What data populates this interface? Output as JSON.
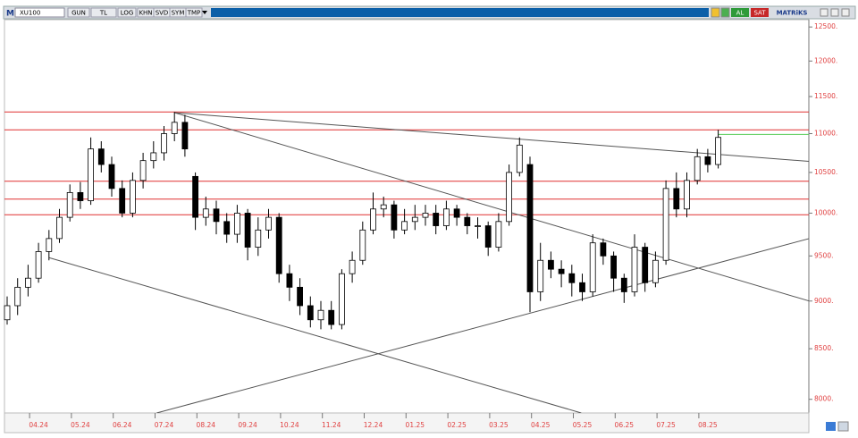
{
  "toolbar": {
    "menu": "M",
    "symbol": "XU100",
    "buttons": [
      "GUN",
      "TL",
      "LOG",
      "KHN",
      "SVD",
      "SYM",
      "TMP"
    ],
    "buy": "AL",
    "sell": "SAT",
    "brand": "MATRiKS"
  },
  "chart_data": {
    "type": "candlestick",
    "log": true,
    "up_color": "#ffffff",
    "down_color": "#000000",
    "categories": [
      null,
      null,
      null,
      "04.24",
      null,
      null,
      null,
      "05.24",
      null,
      null,
      null,
      "06.24",
      null,
      null,
      null,
      "07.24",
      null,
      null,
      null,
      "08.24",
      null,
      null,
      null,
      "09.24",
      null,
      null,
      null,
      "10.24",
      null,
      null,
      null,
      "11.24",
      null,
      null,
      null,
      "12.24",
      null,
      null,
      null,
      "01.25",
      null,
      null,
      null,
      "02.25",
      null,
      null,
      null,
      "03.25",
      null,
      null,
      null,
      "04.25",
      null,
      null,
      null,
      "05.25",
      null,
      null,
      null,
      "06.25",
      null,
      null,
      null,
      "07.25",
      null,
      null,
      null,
      "08.25",
      null
    ],
    "open": [
      8800,
      8950,
      9150,
      9250,
      9550,
      9700,
      9950,
      10250,
      10150,
      10800,
      10600,
      10300,
      10000,
      10400,
      10650,
      10750,
      11000,
      11150,
      10450,
      9950,
      10050,
      9900,
      9750,
      10000,
      9600,
      9800,
      9950,
      9300,
      9150,
      8950,
      8800,
      8900,
      8750,
      9300,
      9450,
      9800,
      10050,
      10100,
      9800,
      9900,
      9950,
      10000,
      9850,
      10050,
      9950,
      9850,
      9850,
      9600,
      9900,
      10500,
      10600,
      9100,
      9450,
      9350,
      9300,
      9200,
      9100,
      9650,
      9500,
      9250,
      9100,
      9600,
      9200,
      9450,
      10300,
      10050,
      10400,
      10700,
      10600
    ],
    "high": [
      9050,
      9250,
      9400,
      9650,
      9800,
      10050,
      10350,
      10380,
      10950,
      10900,
      10700,
      10400,
      10500,
      10750,
      10900,
      11100,
      11290,
      11250,
      10500,
      10200,
      10150,
      10000,
      10100,
      10050,
      9950,
      10050,
      10000,
      9400,
      9250,
      9050,
      9000,
      9000,
      9350,
      9550,
      9900,
      10250,
      10200,
      10150,
      10050,
      10100,
      10100,
      10100,
      10150,
      10100,
      10000,
      9950,
      9900,
      10000,
      10600,
      10950,
      10700,
      9650,
      9550,
      9450,
      9400,
      9300,
      9750,
      9700,
      9550,
      9300,
      9750,
      9650,
      9550,
      10400,
      10500,
      10500,
      10800,
      10800,
      11050
    ],
    "low": [
      8750,
      8850,
      9050,
      9200,
      9450,
      9650,
      9900,
      10050,
      10100,
      10500,
      10200,
      9950,
      9950,
      10300,
      10550,
      10650,
      10900,
      10700,
      9800,
      9850,
      9750,
      9650,
      9650,
      9450,
      9500,
      9700,
      9200,
      9000,
      8850,
      8720,
      8700,
      8700,
      8700,
      9200,
      9400,
      9750,
      9950,
      9700,
      9750,
      9800,
      9850,
      9750,
      9800,
      9850,
      9750,
      9700,
      9500,
      9550,
      9850,
      10450,
      8880,
      9000,
      9250,
      9150,
      9050,
      9000,
      9050,
      9400,
      9100,
      8980,
      9050,
      9100,
      9150,
      9400,
      9950,
      9950,
      10350,
      10500,
      10550
    ],
    "close": [
      8950,
      9150,
      9250,
      9550,
      9700,
      9950,
      10250,
      10150,
      10800,
      10600,
      10300,
      10000,
      10400,
      10650,
      10750,
      11000,
      11150,
      10800,
      9950,
      10050,
      9900,
      9750,
      10000,
      9600,
      9800,
      9950,
      9300,
      9150,
      8950,
      8800,
      8900,
      8750,
      9300,
      9450,
      9800,
      10050,
      10100,
      9800,
      9900,
      9950,
      10000,
      9850,
      10050,
      9950,
      9850,
      9850,
      9600,
      9900,
      10500,
      10850,
      9100,
      9450,
      9350,
      9300,
      9200,
      9100,
      9650,
      9500,
      9250,
      9100,
      9600,
      9200,
      9450,
      10300,
      10050,
      10400,
      10700,
      10600,
      10950
    ],
    "ylim": [
      7870,
      12610
    ],
    "yticks": [
      {
        "value": 8000,
        "label": "8000."
      },
      {
        "value": 8500,
        "label": "8500."
      },
      {
        "value": 9000,
        "label": "9000."
      },
      {
        "value": 9500,
        "label": "9500."
      },
      {
        "value": 10000,
        "label": "10000."
      },
      {
        "value": 10500,
        "label": "10500."
      },
      {
        "value": 11000,
        "label": "11000."
      },
      {
        "value": 11500,
        "label": "11500."
      },
      {
        "value": 12000,
        "label": "12000."
      },
      {
        "value": 12500,
        "label": "12500."
      }
    ],
    "hlines": {
      "color": "#e03030",
      "values": [
        11290,
        11050,
        10390,
        10170,
        9980
      ]
    },
    "level": {
      "color": "#55cc55",
      "value": 10990,
      "from": 68
    },
    "trendlines": {
      "color": "#555555",
      "lines": [
        {
          "x": [
            16,
            76.7
          ],
          "y": [
            11280,
            10640
          ]
        },
        {
          "x": [
            16,
            76.7
          ],
          "y": [
            11280,
            9000
          ]
        },
        {
          "x": [
            4,
            54.9
          ],
          "y": [
            9480,
            7870
          ]
        },
        {
          "x": [
            14.3,
            76.7
          ],
          "y": [
            7870,
            9700
          ]
        }
      ]
    }
  }
}
